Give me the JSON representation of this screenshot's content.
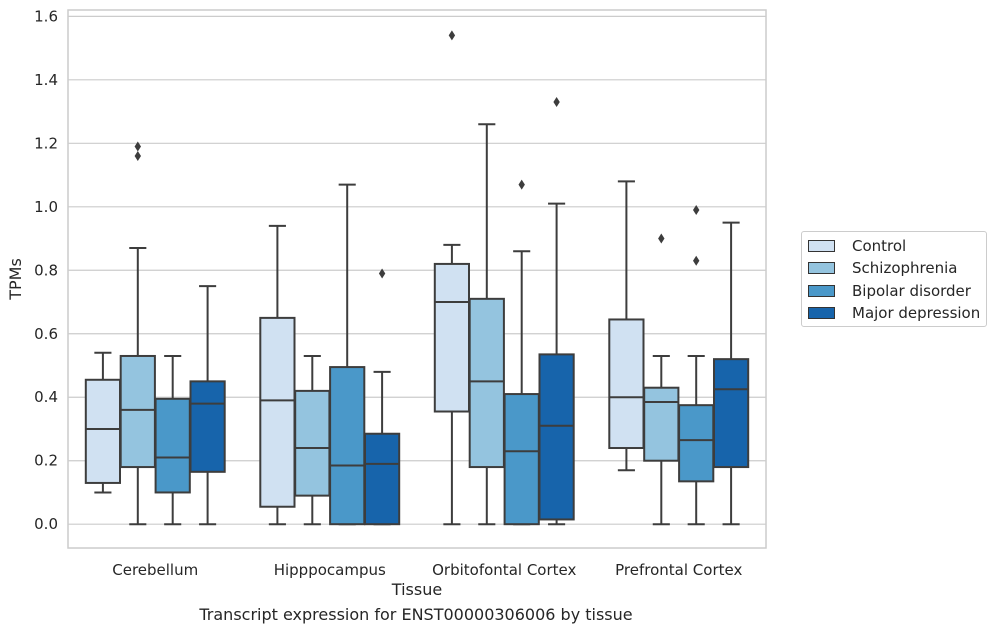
{
  "chart_data": {
    "type": "boxplot",
    "xlabel": "Tissue",
    "ylabel": "TPMs",
    "ylim": [
      -0.075,
      1.62
    ],
    "yticks": [
      0.0,
      0.2,
      0.4,
      0.6,
      0.8,
      1.0,
      1.2,
      1.4,
      1.6
    ],
    "ytick_labels": [
      "0.0",
      "0.2",
      "0.4",
      "0.6",
      "0.8",
      "1.0",
      "1.2",
      "1.4",
      "1.6"
    ],
    "grid": true,
    "legend_position": "right",
    "categories": [
      "Cerebellum",
      "Hipppocampus",
      "Orbitofontal Cortex",
      "Prefrontal Cortex"
    ],
    "series": [
      {
        "name": "Control",
        "color": "#d0e1f2",
        "boxes": [
          {
            "whislo": 0.1,
            "q1": 0.13,
            "med": 0.3,
            "q3": 0.455,
            "whishi": 0.54,
            "fliers": []
          },
          {
            "whislo": 0.0,
            "q1": 0.055,
            "med": 0.39,
            "q3": 0.65,
            "whishi": 0.94,
            "fliers": []
          },
          {
            "whislo": 0.0,
            "q1": 0.355,
            "med": 0.7,
            "q3": 0.82,
            "whishi": 0.88,
            "fliers": [
              1.54
            ]
          },
          {
            "whislo": 0.17,
            "q1": 0.24,
            "med": 0.4,
            "q3": 0.645,
            "whishi": 1.08,
            "fliers": []
          }
        ]
      },
      {
        "name": "Schizophrenia",
        "color": "#94c4df",
        "boxes": [
          {
            "whislo": 0.0,
            "q1": 0.18,
            "med": 0.36,
            "q3": 0.53,
            "whishi": 0.87,
            "fliers": [
              1.19,
              1.16
            ]
          },
          {
            "whislo": 0.0,
            "q1": 0.09,
            "med": 0.24,
            "q3": 0.42,
            "whishi": 0.53,
            "fliers": []
          },
          {
            "whislo": 0.0,
            "q1": 0.18,
            "med": 0.45,
            "q3": 0.71,
            "whishi": 1.26,
            "fliers": []
          },
          {
            "whislo": 0.0,
            "q1": 0.2,
            "med": 0.385,
            "q3": 0.43,
            "whishi": 0.53,
            "fliers": [
              0.9
            ]
          }
        ]
      },
      {
        "name": "Bipolar disorder",
        "color": "#4a98c9",
        "boxes": [
          {
            "whislo": 0.0,
            "q1": 0.1,
            "med": 0.21,
            "q3": 0.395,
            "whishi": 0.53,
            "fliers": []
          },
          {
            "whislo": 0.0,
            "q1": 0.0,
            "med": 0.185,
            "q3": 0.495,
            "whishi": 1.07,
            "fliers": []
          },
          {
            "whislo": 0.0,
            "q1": 0.0,
            "med": 0.23,
            "q3": 0.41,
            "whishi": 0.86,
            "fliers": [
              1.07
            ]
          },
          {
            "whislo": 0.0,
            "q1": 0.135,
            "med": 0.265,
            "q3": 0.375,
            "whishi": 0.53,
            "fliers": [
              0.99,
              0.83
            ]
          }
        ]
      },
      {
        "name": "Major depression",
        "color": "#1764ab",
        "boxes": [
          {
            "whislo": 0.0,
            "q1": 0.165,
            "med": 0.38,
            "q3": 0.45,
            "whishi": 0.75,
            "fliers": []
          },
          {
            "whislo": 0.0,
            "q1": 0.0,
            "med": 0.19,
            "q3": 0.285,
            "whishi": 0.48,
            "fliers": [
              0.79
            ]
          },
          {
            "whislo": 0.0,
            "q1": 0.015,
            "med": 0.31,
            "q3": 0.535,
            "whishi": 1.01,
            "fliers": [
              1.33
            ]
          },
          {
            "whislo": 0.0,
            "q1": 0.18,
            "med": 0.425,
            "q3": 0.52,
            "whishi": 0.95,
            "fliers": []
          }
        ]
      }
    ]
  },
  "caption": "Transcript expression for ENST00000306006 by tissue"
}
